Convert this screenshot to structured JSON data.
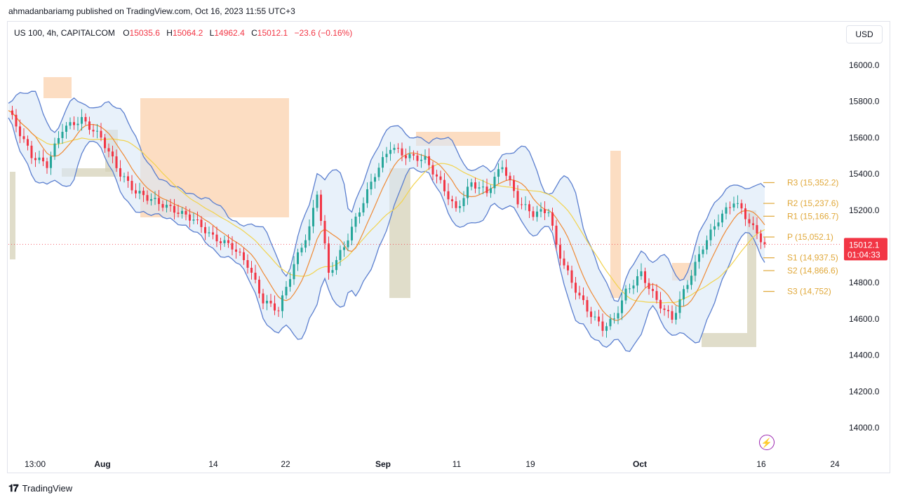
{
  "header": {
    "published": "ahmadanbariamg published on TradingView.com, Oct 16, 2023 11:55 UTC+3"
  },
  "legend": {
    "symbol": "US 100, 4h, CAPITALCOM",
    "open_label": "O",
    "open": "15035.6",
    "high_label": "H",
    "high": "15064.2",
    "low_label": "L",
    "low": "14962.4",
    "close_label": "C",
    "close": "15012.1",
    "change": "−23.6 (−0.16%)"
  },
  "currency": "USD",
  "price_tag": {
    "price": "15012.1",
    "countdown": "01:04:33"
  },
  "footer": {
    "brand": "TradingView"
  },
  "colors": {
    "up": "#26a69a",
    "down": "#f23645",
    "band": "#5b7fcf",
    "band_fill": "#d8e8f7",
    "ma_fast": "#ef8a36",
    "ma_slow": "#f2d34e",
    "pivot": "#e0a83a",
    "zone_orange": "#fbd2ad",
    "zone_olive": "#d6d2b8"
  },
  "icons": {
    "flash": "lightning-icon"
  },
  "chart_data": {
    "type": "candlestick",
    "title": "",
    "xlabel": "",
    "ylabel": "",
    "ylim": [
      13800,
      16200
    ],
    "yticks": [
      "16000.0",
      "15800.0",
      "15600.0",
      "15400.0",
      "15200.0",
      "15000.0",
      "14800.0",
      "14600.0",
      "14400.0",
      "14200.0",
      "14000.0"
    ],
    "xticks": [
      "13:00",
      "Aug",
      "14",
      "22",
      "Sep",
      "11",
      "19",
      "Oct",
      "16",
      "24"
    ],
    "grid": false,
    "last_price": 15012.1,
    "pivots": [
      {
        "label": "R3 (15,352.2)",
        "value": 15352.2
      },
      {
        "label": "R2 (15,237.6)",
        "value": 15237.6
      },
      {
        "label": "R1 (15,166.7)",
        "value": 15166.7
      },
      {
        "label": "P (15,052.1)",
        "value": 15052.1
      },
      {
        "label": "S1 (14,937.5)",
        "value": 14937.5
      },
      {
        "label": "S2 (14,866.6)",
        "value": 14866.6
      },
      {
        "label": "S3 (14,752)",
        "value": 14752
      }
    ],
    "close_path": [
      [
        0,
        15750
      ],
      [
        6,
        15500
      ],
      [
        10,
        15450
      ],
      [
        14,
        15650
      ],
      [
        19,
        15700
      ],
      [
        24,
        15600
      ],
      [
        29,
        15400
      ],
      [
        33,
        15300
      ],
      [
        38,
        15250
      ],
      [
        43,
        15200
      ],
      [
        48,
        15150
      ],
      [
        53,
        15050
      ],
      [
        58,
        15000
      ],
      [
        62,
        14900
      ],
      [
        66,
        14700
      ],
      [
        70,
        14650
      ],
      [
        74,
        14900
      ],
      [
        78,
        15100
      ],
      [
        80,
        15300
      ],
      [
        83,
        14850
      ],
      [
        87,
        15000
      ],
      [
        91,
        15200
      ],
      [
        95,
        15400
      ],
      [
        99,
        15550
      ],
      [
        103,
        15500
      ],
      [
        108,
        15480
      ],
      [
        112,
        15350
      ],
      [
        116,
        15200
      ],
      [
        120,
        15350
      ],
      [
        124,
        15300
      ],
      [
        128,
        15450
      ],
      [
        132,
        15250
      ],
      [
        136,
        15180
      ],
      [
        140,
        15200
      ],
      [
        142,
        15000
      ],
      [
        146,
        14800
      ],
      [
        150,
        14650
      ],
      [
        154,
        14550
      ],
      [
        157,
        14600
      ],
      [
        160,
        14750
      ],
      [
        164,
        14850
      ],
      [
        168,
        14700
      ],
      [
        172,
        14600
      ],
      [
        176,
        14800
      ],
      [
        180,
        15000
      ],
      [
        184,
        15150
      ],
      [
        188,
        15250
      ],
      [
        190,
        15200
      ],
      [
        193,
        15100
      ],
      [
        196,
        15012.1
      ]
    ]
  }
}
